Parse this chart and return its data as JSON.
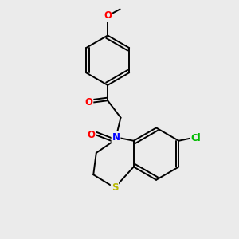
{
  "background_color": "#ebebeb",
  "bond_color": "#000000",
  "atom_colors": {
    "O": "#ff0000",
    "N": "#0000ff",
    "S": "#b8b800",
    "Cl": "#00bb00",
    "C": "#000000"
  },
  "figsize": [
    3.0,
    3.0
  ],
  "dpi": 100,
  "xlim": [
    0,
    10
  ],
  "ylim": [
    0,
    10
  ]
}
